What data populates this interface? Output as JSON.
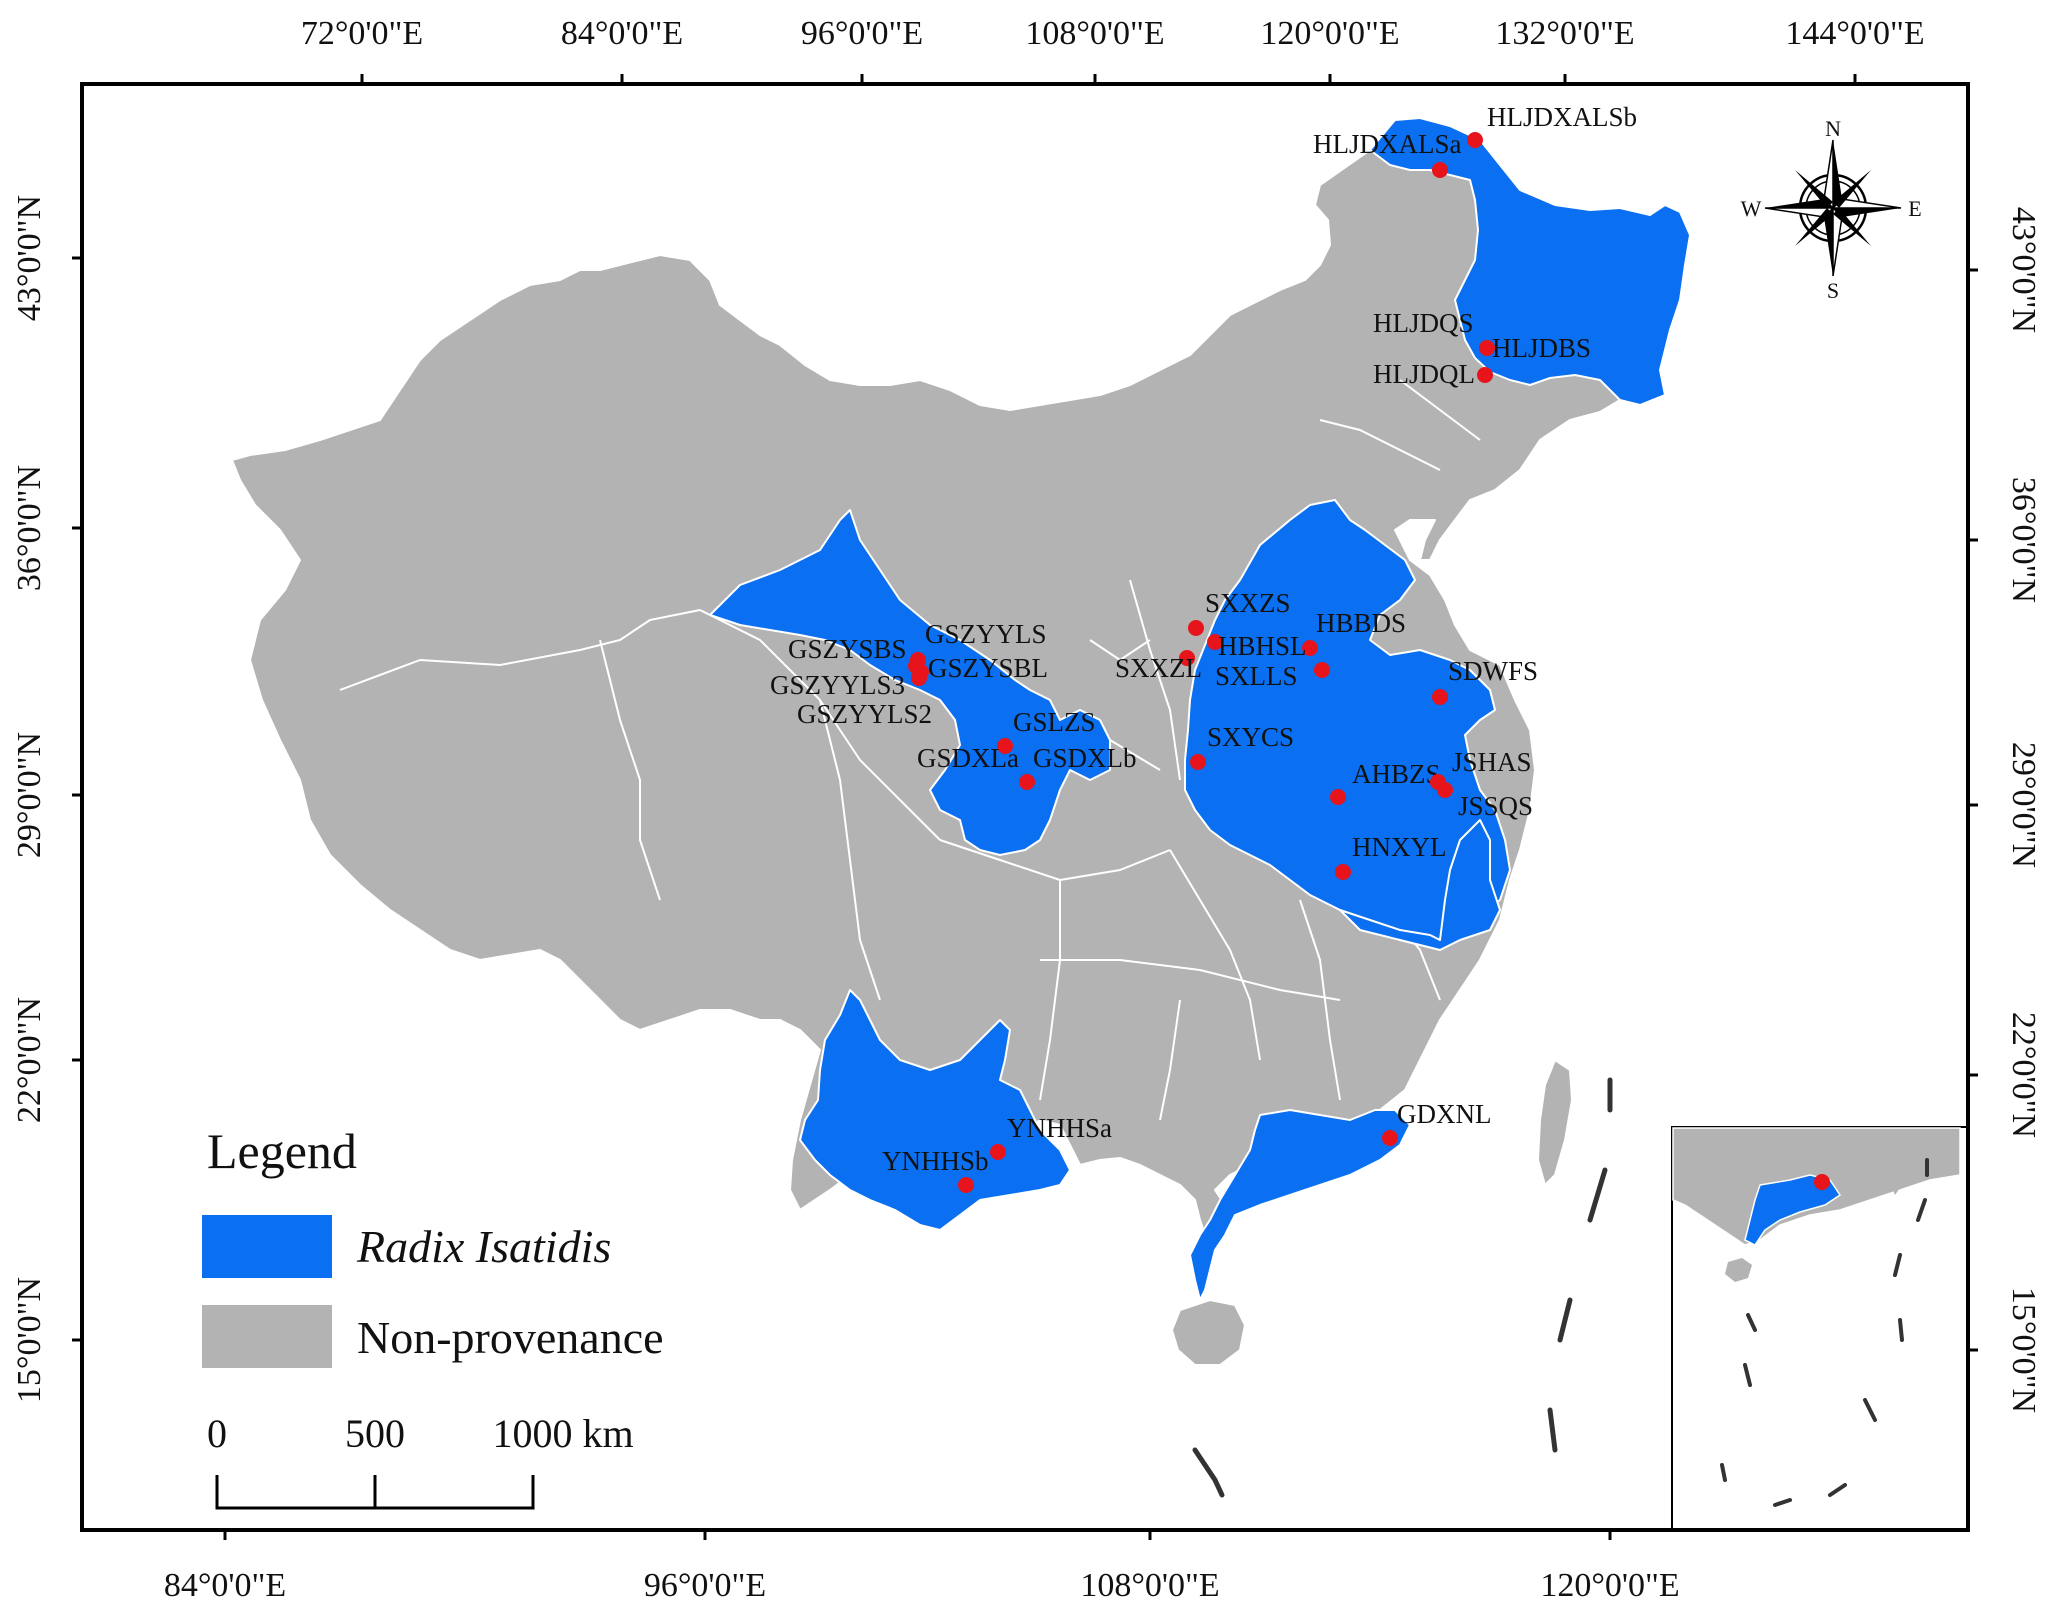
{
  "colors": {
    "provenance": "#0a6ff0",
    "non_provenance": "#b3b3b3",
    "sample_point": "#e8141c",
    "frame": "#000000",
    "boundary": "#ffffff"
  },
  "graticule": {
    "top": [
      "72°0'0\"E",
      "84°0'0\"E",
      "96°0'0\"E",
      "108°0'0\"E",
      "120°0'0\"E",
      "132°0'0\"E",
      "144°0'0\"E"
    ],
    "bottom": [
      "84°0'0\"E",
      "96°0'0\"E",
      "108°0'0\"E",
      "120°0'0\"E"
    ],
    "left": [
      "43°0'0\"N",
      "36°0'0\"N",
      "29°0'0\"N",
      "22°0'0\"N",
      "15°0'0\"N"
    ],
    "right": [
      "43°0'0\"N",
      "36°0'0\"N",
      "29°0'0\"N",
      "22°0'0\"N",
      "15°0'0\"N"
    ]
  },
  "sites": [
    {
      "id": "HLJDXALSb",
      "label": "HLJDXALSb"
    },
    {
      "id": "HLJDXALSa",
      "label": "HLJDXALSa"
    },
    {
      "id": "HLJDQS",
      "label": "HLJDQS"
    },
    {
      "id": "HLJDBS",
      "label": "HLJDBS"
    },
    {
      "id": "HLJDQL",
      "label": "HLJDQL"
    },
    {
      "id": "SXXZS",
      "label": "SXXZS"
    },
    {
      "id": "HBBDS",
      "label": "HBBDS"
    },
    {
      "id": "HBHSL",
      "label": "HBHSL"
    },
    {
      "id": "SXXZL",
      "label": "SXXZL"
    },
    {
      "id": "SXLLS",
      "label": "SXLLS"
    },
    {
      "id": "SDWFS",
      "label": "SDWFS"
    },
    {
      "id": "SXYCS",
      "label": "SXYCS"
    },
    {
      "id": "AHBZS",
      "label": "AHBZS"
    },
    {
      "id": "JSHAS",
      "label": "JSHAS"
    },
    {
      "id": "JSSQS",
      "label": "JSSQS"
    },
    {
      "id": "HNXYL",
      "label": "HNXYL"
    },
    {
      "id": "GSZYYLS",
      "label": "GSZYYLS"
    },
    {
      "id": "GSZYSBS",
      "label": "GSZYSBS"
    },
    {
      "id": "GSZYSBL",
      "label": "GSZYSBL"
    },
    {
      "id": "GSZYYLS3",
      "label": "GSZYYLS3"
    },
    {
      "id": "GSZYYLS2",
      "label": "GSZYYLS2"
    },
    {
      "id": "GSLZS",
      "label": "GSLZS"
    },
    {
      "id": "GSDXLa",
      "label": "GSDXLa"
    },
    {
      "id": "GSDXLb",
      "label": "GSDXLb"
    },
    {
      "id": "YNHHSa",
      "label": "YNHHSa"
    },
    {
      "id": "YNHHSb",
      "label": "YNHHSb"
    },
    {
      "id": "GDXNL",
      "label": "GDXNL"
    }
  ],
  "legend": {
    "title": "Legend",
    "provenance_label": "Radix Isatidis",
    "non_provenance_label": "Non-provenance"
  },
  "scale_bar": {
    "labels": [
      "0",
      "500",
      "1000 km"
    ]
  },
  "compass": {
    "n": "N",
    "s": "S",
    "e": "E",
    "w": "W"
  }
}
